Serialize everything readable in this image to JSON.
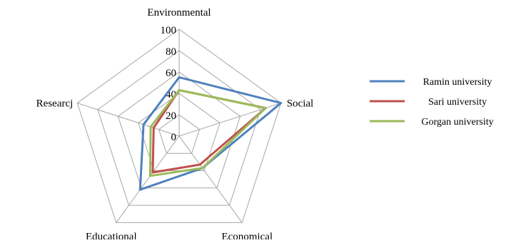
{
  "chart_data": {
    "type": "radar",
    "axes": [
      "Environmental",
      "Social",
      "Economical",
      "Educational",
      "Researcj"
    ],
    "ticks": [
      0,
      20,
      40,
      60,
      80,
      100
    ],
    "rlim": [
      0,
      100
    ],
    "grid": true,
    "legend_position": "right",
    "series": [
      {
        "name": "Ramin university",
        "color": "#4F81BD",
        "values": [
          55,
          100,
          37,
          62,
          35
        ]
      },
      {
        "name": "Sari university",
        "color": "#C0504D",
        "values": [
          43,
          85,
          33,
          42,
          25
        ]
      },
      {
        "name": "Gorgan university",
        "color": "#9BBB59",
        "values": [
          43,
          85,
          37,
          46,
          28
        ]
      }
    ]
  }
}
